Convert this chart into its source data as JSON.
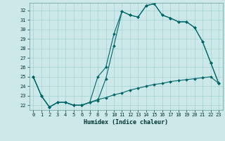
{
  "xlabel": "Humidex (Indice chaleur)",
  "background_color": "#cce8e8",
  "grid_color": "#99cccc",
  "line_color": "#006666",
  "xlim": [
    -0.5,
    23.5
  ],
  "ylim": [
    21.5,
    32.8
  ],
  "xticks": [
    0,
    1,
    2,
    3,
    4,
    5,
    6,
    7,
    8,
    9,
    10,
    11,
    12,
    13,
    14,
    15,
    16,
    17,
    18,
    19,
    20,
    21,
    22,
    23
  ],
  "yticks": [
    22,
    23,
    24,
    25,
    26,
    27,
    28,
    29,
    30,
    31,
    32
  ],
  "line1_x": [
    0,
    1,
    2,
    3,
    4,
    5,
    6,
    7,
    8,
    9,
    10,
    11,
    12,
    13,
    14,
    15,
    16,
    17,
    18,
    19,
    20,
    21,
    22,
    23
  ],
  "line1_y": [
    25.0,
    23.0,
    21.8,
    22.3,
    22.3,
    22.0,
    22.0,
    22.3,
    25.0,
    26.0,
    29.5,
    31.9,
    31.5,
    31.3,
    32.5,
    32.7,
    31.5,
    31.2,
    30.8,
    30.8,
    30.2,
    28.7,
    26.5,
    24.3
  ],
  "line2_x": [
    0,
    1,
    2,
    3,
    4,
    5,
    6,
    7,
    8,
    9,
    10,
    11,
    12,
    13,
    14,
    15,
    16,
    17,
    18,
    19,
    20,
    21,
    22,
    23
  ],
  "line2_y": [
    25.0,
    23.0,
    21.8,
    22.3,
    22.3,
    22.0,
    22.0,
    22.3,
    22.5,
    24.8,
    28.3,
    31.9,
    31.5,
    31.3,
    32.5,
    32.7,
    31.5,
    31.2,
    30.8,
    30.8,
    30.2,
    28.7,
    26.5,
    24.3
  ],
  "line3_x": [
    0,
    1,
    2,
    3,
    4,
    5,
    6,
    7,
    8,
    9,
    10,
    11,
    12,
    13,
    14,
    15,
    16,
    17,
    18,
    19,
    20,
    21,
    22,
    23
  ],
  "line3_y": [
    25.0,
    23.0,
    21.8,
    22.3,
    22.3,
    22.0,
    22.0,
    22.3,
    22.6,
    22.8,
    23.1,
    23.3,
    23.6,
    23.8,
    24.0,
    24.2,
    24.3,
    24.5,
    24.6,
    24.7,
    24.8,
    24.9,
    25.0,
    24.3
  ]
}
